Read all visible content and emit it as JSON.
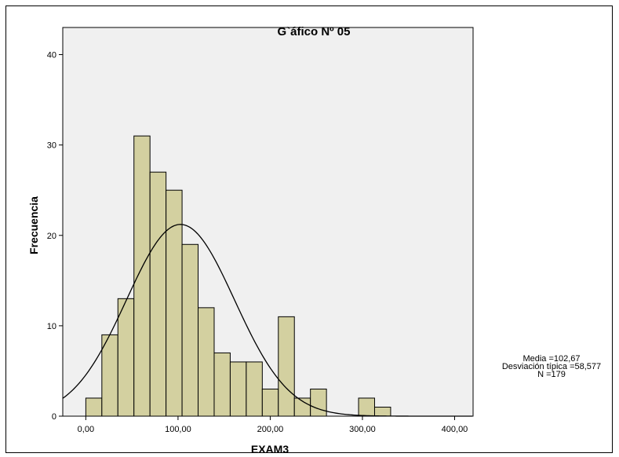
{
  "chart_data": {
    "type": "bar",
    "title": "G`áfico Nº 05",
    "xlabel": "EXAM3",
    "ylabel": "Frecuencia",
    "xlim": [
      -25,
      420
    ],
    "ylim": [
      0,
      43
    ],
    "x_ticks": [
      0,
      100,
      200,
      300,
      400
    ],
    "x_tick_labels": [
      "0,00",
      "100,00",
      "200,00",
      "300,00",
      "400,00"
    ],
    "y_ticks": [
      0,
      10,
      20,
      30,
      40
    ],
    "y_tick_labels": [
      "0",
      "10",
      "20",
      "30",
      "40"
    ],
    "bin_width": 17.4,
    "bin_start": 0,
    "values": [
      2,
      9,
      13,
      31,
      27,
      25,
      19,
      12,
      7,
      6,
      6,
      3,
      11,
      2,
      3,
      0,
      0,
      2,
      1
    ],
    "normal_curve": {
      "mean": 102.67,
      "sd": 58.577,
      "n": 179
    },
    "colors": {
      "bar_fill": "#d3d0a0",
      "bar_stroke": "#000000",
      "plot_bg": "#f0f0f0",
      "curve": "#000000"
    }
  },
  "stats": {
    "mean_label": "Media =102,67",
    "sd_label": "Desviación típica =58,577",
    "n_label": "N =179"
  }
}
